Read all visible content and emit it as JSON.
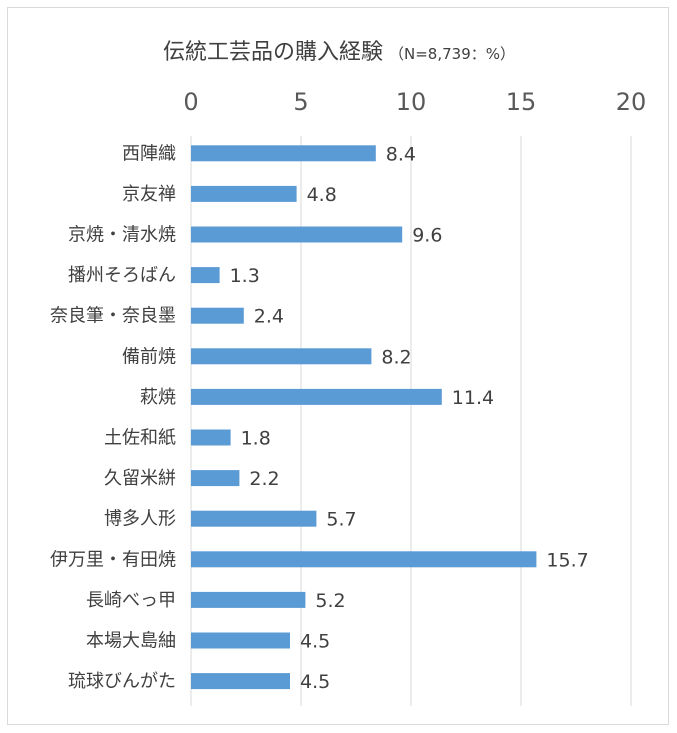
{
  "chart_data": {
    "type": "bar",
    "orientation": "horizontal",
    "title": "伝統工芸品の購入経験",
    "subtitle": "（N=8,739：%）",
    "categories": [
      "西陣織",
      "京友禅",
      "京焼・清水焼",
      "播州そろばん",
      "奈良筆・奈良墨",
      "備前焼",
      "萩焼",
      "土佐和紙",
      "久留米絣",
      "博多人形",
      "伊万里・有田焼",
      "長崎べっ甲",
      "本場大島紬",
      "琉球びんがた"
    ],
    "values": [
      8.4,
      4.8,
      9.6,
      1.3,
      2.4,
      8.2,
      11.4,
      1.8,
      2.2,
      5.7,
      15.7,
      5.2,
      4.5,
      4.5
    ],
    "value_labels": [
      "8.4",
      "4.8",
      "9.6",
      "1.3",
      "2.4",
      "8.2",
      "11.4",
      "1.8",
      "2.2",
      "5.7",
      "15.7",
      "5.2",
      "4.5",
      "4.5"
    ],
    "xticks": [
      "0",
      "5",
      "10",
      "15",
      "20"
    ],
    "xlim": [
      0,
      20
    ],
    "x_axis_position": "top",
    "grid": true,
    "legend": "none",
    "bar_color": "#5b9bd5",
    "grid_color": "#d9d9d9"
  }
}
